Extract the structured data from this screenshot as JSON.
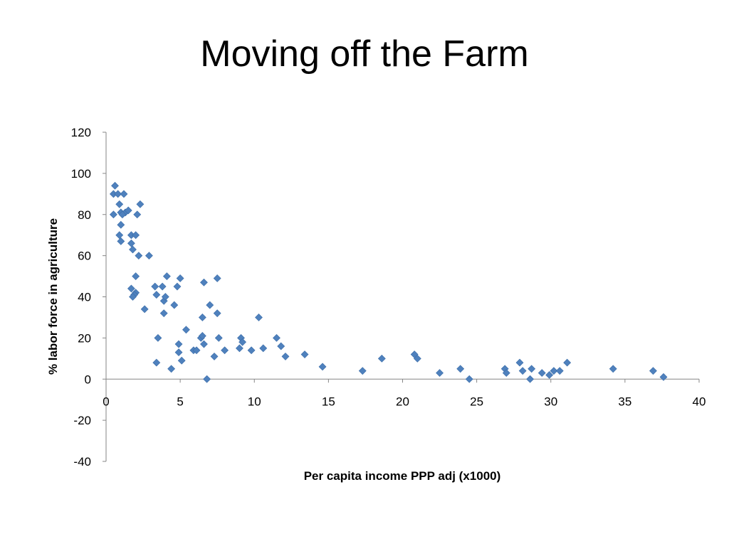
{
  "slide": {
    "title": "Moving off the Farm"
  },
  "chart_data": {
    "type": "scatter",
    "title": "",
    "xlabel": "Per capita income PPP adj (x1000)",
    "ylabel": "% labor force in agriculture",
    "xlim": [
      0,
      40
    ],
    "ylim": [
      -40,
      120
    ],
    "xticks": [
      0,
      5,
      10,
      15,
      20,
      25,
      30,
      35,
      40
    ],
    "yticks": [
      -40,
      -20,
      0,
      20,
      40,
      60,
      80,
      100,
      120
    ],
    "grid": false,
    "legend": "none",
    "marker": "diamond",
    "color": "#4F81BD",
    "series": [
      {
        "points": [
          [
            0.6,
            94
          ],
          [
            0.5,
            90
          ],
          [
            0.8,
            90
          ],
          [
            1.2,
            90
          ],
          [
            0.5,
            80
          ],
          [
            0.9,
            85
          ],
          [
            1.0,
            81
          ],
          [
            1.3,
            81
          ],
          [
            1.5,
            82
          ],
          [
            2.3,
            85
          ],
          [
            2.1,
            80
          ],
          [
            1.1,
            80
          ],
          [
            1.0,
            75
          ],
          [
            0.9,
            70
          ],
          [
            1.7,
            70
          ],
          [
            2.0,
            70
          ],
          [
            1.0,
            67
          ],
          [
            1.7,
            66
          ],
          [
            1.8,
            63
          ],
          [
            2.2,
            60
          ],
          [
            2.9,
            60
          ],
          [
            2.0,
            50
          ],
          [
            1.7,
            44
          ],
          [
            2.0,
            42
          ],
          [
            1.9,
            41
          ],
          [
            1.8,
            40
          ],
          [
            2.6,
            34
          ],
          [
            3.3,
            45
          ],
          [
            3.4,
            41
          ],
          [
            3.8,
            45
          ],
          [
            3.9,
            38
          ],
          [
            4.0,
            40
          ],
          [
            4.1,
            50
          ],
          [
            3.9,
            32
          ],
          [
            3.5,
            20
          ],
          [
            3.4,
            8
          ],
          [
            4.4,
            5
          ],
          [
            4.6,
            36
          ],
          [
            4.8,
            45
          ],
          [
            5.0,
            49
          ],
          [
            4.9,
            17
          ],
          [
            4.9,
            13
          ],
          [
            5.1,
            9
          ],
          [
            5.4,
            24
          ],
          [
            5.9,
            14
          ],
          [
            6.1,
            14
          ],
          [
            6.4,
            20
          ],
          [
            6.5,
            21
          ],
          [
            6.6,
            17
          ],
          [
            6.5,
            30
          ],
          [
            6.6,
            47
          ],
          [
            7.0,
            36
          ],
          [
            6.8,
            0
          ],
          [
            7.3,
            11
          ],
          [
            7.5,
            49
          ],
          [
            7.5,
            32
          ],
          [
            7.6,
            20
          ],
          [
            8.0,
            14
          ],
          [
            9.0,
            15
          ],
          [
            9.1,
            20
          ],
          [
            9.2,
            18
          ],
          [
            9.8,
            14
          ],
          [
            10.3,
            30
          ],
          [
            10.6,
            15
          ],
          [
            11.5,
            20
          ],
          [
            11.8,
            16
          ],
          [
            12.1,
            11
          ],
          [
            13.4,
            12
          ],
          [
            14.6,
            6
          ],
          [
            17.3,
            4
          ],
          [
            18.6,
            10
          ],
          [
            20.8,
            12
          ],
          [
            21.0,
            10
          ],
          [
            22.5,
            3
          ],
          [
            23.9,
            5
          ],
          [
            24.5,
            0
          ],
          [
            26.9,
            5
          ],
          [
            27.0,
            3
          ],
          [
            27.9,
            8
          ],
          [
            28.1,
            4
          ],
          [
            28.6,
            0
          ],
          [
            28.7,
            5
          ],
          [
            29.4,
            3
          ],
          [
            29.9,
            2
          ],
          [
            30.2,
            4
          ],
          [
            30.6,
            4
          ],
          [
            31.1,
            8
          ],
          [
            34.2,
            5
          ],
          [
            36.9,
            4
          ],
          [
            37.6,
            1
          ]
        ]
      }
    ]
  }
}
